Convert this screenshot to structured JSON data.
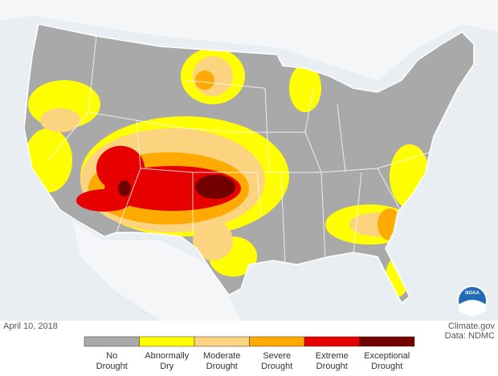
{
  "date": "April 10, 2018",
  "credits": [
    "Climate.gov",
    "Data: NDMC"
  ],
  "logo": "NOAA",
  "legend": [
    {
      "label": [
        "No",
        "Drought"
      ],
      "color": "#a9a9a9"
    },
    {
      "label": [
        "Abnormally",
        "Dry"
      ],
      "color": "#ffff00"
    },
    {
      "label": [
        "Moderate",
        "Drought"
      ],
      "color": "#fcd37f"
    },
    {
      "label": [
        "Severe",
        "Drought"
      ],
      "color": "#ffaa00"
    },
    {
      "label": [
        "Extreme",
        "Drought"
      ],
      "color": "#e60000"
    },
    {
      "label": [
        "Exceptional",
        "Drought"
      ],
      "color": "#730000"
    }
  ]
}
